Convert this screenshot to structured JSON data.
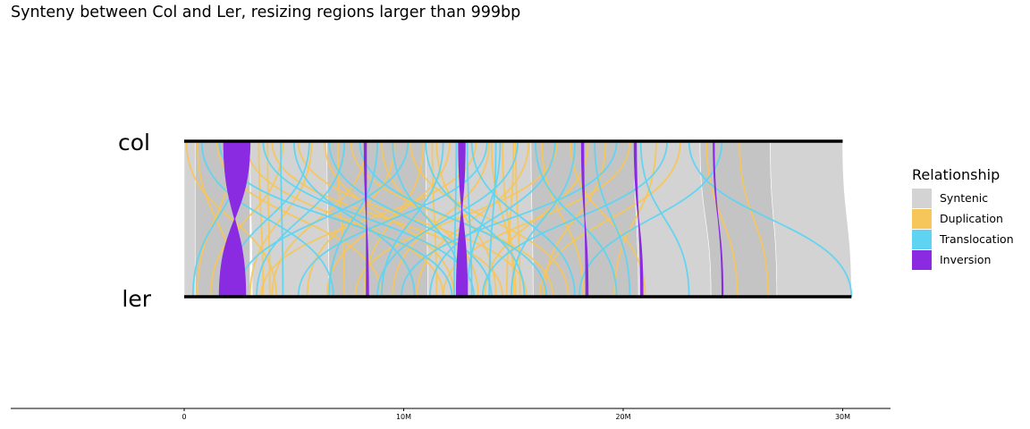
{
  "chart_data": {
    "type": "synteny",
    "title": "Synteny between Col and Ler, resizing regions larger than 999bp",
    "genomes": [
      "col",
      "ler"
    ],
    "x_axis": {
      "ticks": [
        0,
        10000000,
        20000000,
        30000000
      ],
      "tick_labels": [
        "0",
        "10M",
        "20M",
        "30M"
      ],
      "xlim": [
        -8000000,
        32500000
      ]
    },
    "chromosome_length": {
      "col": 30000000,
      "ler": 30400000
    },
    "legend": {
      "title": "Relationship",
      "position": "right",
      "entries": [
        {
          "name": "Syntenic",
          "color": "#d3d3d3"
        },
        {
          "name": "Duplication",
          "color": "#f7c65a"
        },
        {
          "name": "Translocation",
          "color": "#5fd4f2"
        },
        {
          "name": "Inversion",
          "color": "#8a2be2"
        }
      ]
    },
    "syntenic_blocks": [
      {
        "col": [
          0,
          500000
        ],
        "ler": [
          0,
          500000
        ]
      },
      {
        "col": [
          500000,
          3000000
        ],
        "ler": [
          500000,
          3000000
        ]
      },
      {
        "col": [
          3000000,
          6500000
        ],
        "ler": [
          3100000,
          6600000
        ]
      },
      {
        "col": [
          6500000,
          11000000
        ],
        "ler": [
          6600000,
          11100000
        ]
      },
      {
        "col": [
          11000000,
          15800000
        ],
        "ler": [
          11100000,
          15900000
        ]
      },
      {
        "col": [
          15800000,
          20500000
        ],
        "ler": [
          15900000,
          20700000
        ]
      },
      {
        "col": [
          20500000,
          23500000
        ],
        "ler": [
          20700000,
          24000000
        ]
      },
      {
        "col": [
          23500000,
          26700000
        ],
        "ler": [
          24000000,
          27000000
        ]
      },
      {
        "col": [
          26700000,
          30000000
        ],
        "ler": [
          27000000,
          30400000
        ]
      }
    ],
    "inversions": [
      {
        "col": [
          1800000,
          3000000
        ],
        "ler": [
          1600000,
          2800000
        ]
      },
      {
        "col": [
          8200000,
          8300000
        ],
        "ler": [
          8300000,
          8400000
        ]
      },
      {
        "col": [
          12500000,
          12800000
        ],
        "ler": [
          12400000,
          12900000
        ]
      },
      {
        "col": [
          18100000,
          18200000
        ],
        "ler": [
          18300000,
          18400000
        ]
      },
      {
        "col": [
          20500000,
          20600000
        ],
        "ler": [
          20800000,
          20900000
        ]
      },
      {
        "col": [
          24100000,
          24150000
        ],
        "ler": [
          24500000,
          24550000
        ]
      }
    ],
    "duplications": [
      [
        100000,
        4200000
      ],
      [
        600000,
        2300000
      ],
      [
        1500000,
        9000000
      ],
      [
        2200000,
        600000
      ],
      [
        2800000,
        11800000
      ],
      [
        3400000,
        3600000
      ],
      [
        4000000,
        14500000
      ],
      [
        4500000,
        1200000
      ],
      [
        5200000,
        15600000
      ],
      [
        5800000,
        3000000
      ],
      [
        6400000,
        12300000
      ],
      [
        7000000,
        7300000
      ],
      [
        7600000,
        16800000
      ],
      [
        8300000,
        4000000
      ],
      [
        9000000,
        13400000
      ],
      [
        9600000,
        5600000
      ],
      [
        10300000,
        17500000
      ],
      [
        10900000,
        8200000
      ],
      [
        11500000,
        14200000
      ],
      [
        12100000,
        6500000
      ],
      [
        12700000,
        12600000
      ],
      [
        13300000,
        3500000
      ],
      [
        13900000,
        9500000
      ],
      [
        14500000,
        15000000
      ],
      [
        15100000,
        15300000
      ],
      [
        15700000,
        10600000
      ],
      [
        16300000,
        18200000
      ],
      [
        17000000,
        7800000
      ],
      [
        17600000,
        21000000
      ],
      [
        18400000,
        13700000
      ],
      [
        19200000,
        16400000
      ],
      [
        20300000,
        11800000
      ],
      [
        21500000,
        19600000
      ],
      [
        22600000,
        16200000
      ],
      [
        23800000,
        25200000
      ],
      [
        25300000,
        26600000
      ],
      [
        14000000,
        15100000
      ],
      [
        15000000,
        14700000
      ],
      [
        3800000,
        3900000
      ],
      [
        11300000,
        11500000
      ]
    ],
    "translocations": [
      [
        800000,
        6800000
      ],
      [
        1600000,
        12200000
      ],
      [
        2600000,
        400000
      ],
      [
        3600000,
        13200000
      ],
      [
        4400000,
        4500000
      ],
      [
        5000000,
        10500000
      ],
      [
        5700000,
        1900000
      ],
      [
        6600000,
        14000000
      ],
      [
        7300000,
        3300000
      ],
      [
        8000000,
        16500000
      ],
      [
        8800000,
        6600000
      ],
      [
        9500000,
        12700000
      ],
      [
        10200000,
        2400000
      ],
      [
        11000000,
        15500000
      ],
      [
        11800000,
        9000000
      ],
      [
        12400000,
        12300000
      ],
      [
        13100000,
        17800000
      ],
      [
        13800000,
        5200000
      ],
      [
        14400000,
        12900000
      ],
      [
        15200000,
        8800000
      ],
      [
        16000000,
        19700000
      ],
      [
        16900000,
        11200000
      ],
      [
        17800000,
        14900000
      ],
      [
        18700000,
        20300000
      ],
      [
        19700000,
        9900000
      ],
      [
        20800000,
        23000000
      ],
      [
        22000000,
        13600000
      ],
      [
        23000000,
        30400000
      ],
      [
        24500000,
        18000000
      ],
      [
        12600000,
        12700000
      ],
      [
        12900000,
        13100000
      ],
      [
        14200000,
        13900000
      ]
    ]
  }
}
